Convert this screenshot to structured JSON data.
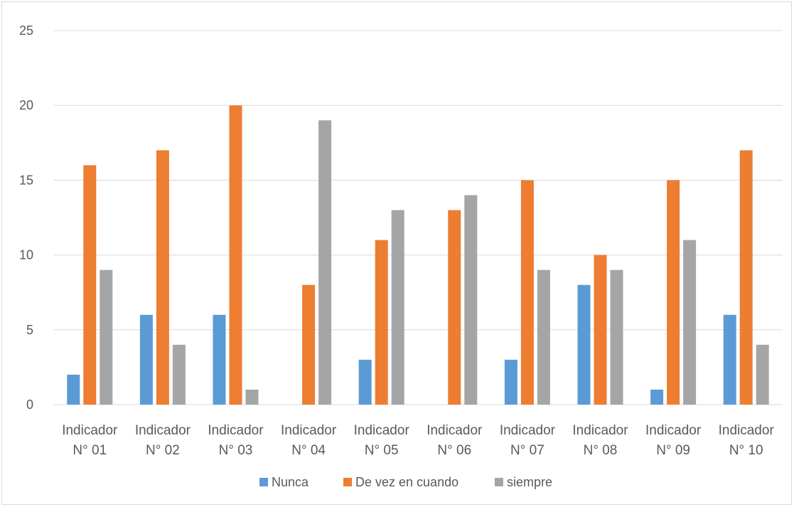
{
  "chart_data": {
    "type": "bar",
    "title": "",
    "xlabel": "",
    "ylabel": "",
    "ylim": [
      0,
      25
    ],
    "yticks": [
      0,
      5,
      10,
      15,
      20,
      25
    ],
    "grid": true,
    "legend_position": "bottom",
    "categories": [
      [
        "Indicador",
        "N° 01"
      ],
      [
        "Indicador",
        "N° 02"
      ],
      [
        "Indicador",
        "N° 03"
      ],
      [
        "Indicador",
        "N° 04"
      ],
      [
        "Indicador",
        "N° 05"
      ],
      [
        "Indicador",
        "N° 06"
      ],
      [
        "Indicador",
        "N° 07"
      ],
      [
        "Indicador",
        "N° 08"
      ],
      [
        "Indicador",
        "N° 09"
      ],
      [
        "Indicador",
        "N° 10"
      ]
    ],
    "series": [
      {
        "name": "Nunca",
        "color": "#5b9bd5",
        "values": [
          2,
          6,
          6,
          0,
          3,
          0,
          3,
          8,
          1,
          6
        ]
      },
      {
        "name": "De vez en cuando",
        "color": "#ed7d31",
        "values": [
          16,
          17,
          20,
          8,
          11,
          13,
          15,
          10,
          15,
          17
        ]
      },
      {
        "name": "siempre",
        "color": "#a5a5a5",
        "values": [
          9,
          4,
          1,
          19,
          13,
          14,
          9,
          9,
          11,
          4
        ]
      }
    ]
  }
}
